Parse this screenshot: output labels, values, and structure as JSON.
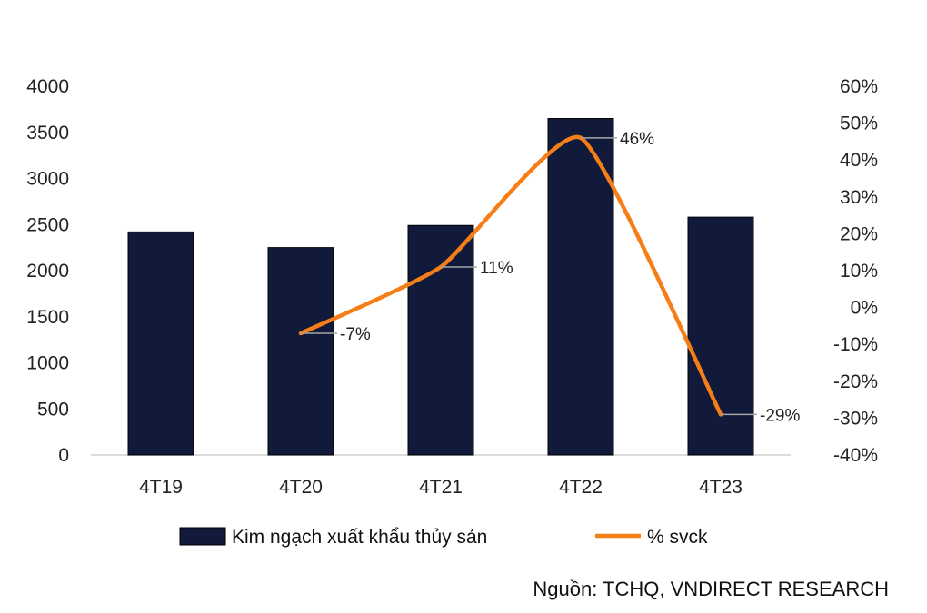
{
  "chart_data": {
    "type": "bar+line",
    "categories": [
      "4T19",
      "4T20",
      "4T21",
      "4T22",
      "4T23"
    ],
    "series": [
      {
        "name": "Kim ngạch xuất khẩu thủy sản",
        "type": "bar",
        "axis": "left",
        "color": "#111a3b",
        "values": [
          2420,
          2250,
          2490,
          3650,
          2580
        ]
      },
      {
        "name": "% svck",
        "type": "line",
        "axis": "right",
        "color": "#f57f16",
        "values": [
          null,
          -7,
          11,
          46,
          -29
        ],
        "labels": [
          "",
          "-7%",
          "11%",
          "46%",
          "-29%"
        ]
      }
    ],
    "y_left": {
      "min": 0,
      "max": 4000,
      "ticks": [
        "0",
        "500",
        "1000",
        "1500",
        "2000",
        "2500",
        "3000",
        "3500",
        "4000"
      ]
    },
    "y_right": {
      "min": -40,
      "max": 60,
      "ticks": [
        "-40%",
        "-30%",
        "-20%",
        "-10%",
        "0%",
        "10%",
        "20%",
        "30%",
        "40%",
        "50%",
        "60%"
      ]
    },
    "grid": false,
    "legend_position": "bottom"
  },
  "source_text": "Nguồn: TCHQ, VNDIRECT RESEARCH"
}
